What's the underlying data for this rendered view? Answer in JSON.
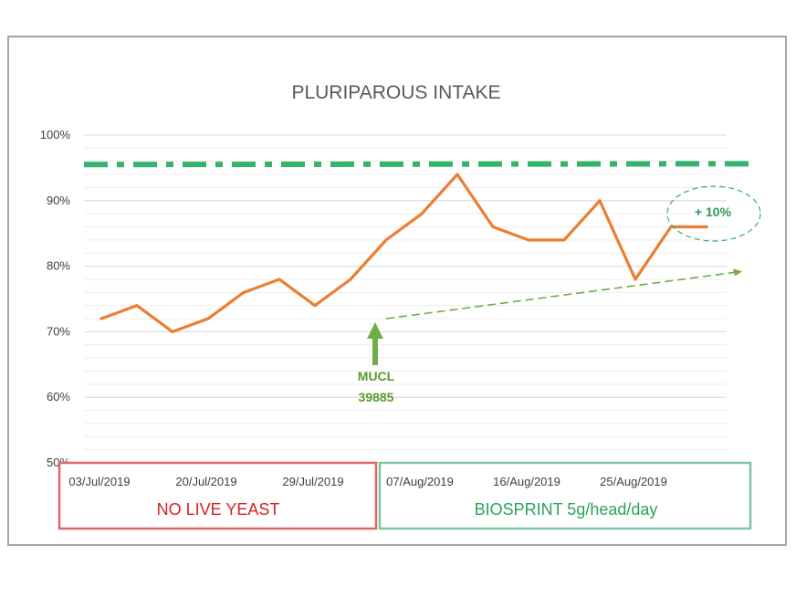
{
  "chart_data": {
    "type": "line",
    "title": "PLURIPAROUS INTAKE",
    "xlabel": "",
    "ylabel": "",
    "ylim": [
      50,
      100
    ],
    "ytick_labels": [
      "50%",
      "60%",
      "70%",
      "80%",
      "90%",
      "100%"
    ],
    "yticks": [
      50,
      60,
      70,
      80,
      90,
      100
    ],
    "x_tick_labels": [
      "03/Jul/2019",
      "20/Jul/2019",
      "29/Jul/2019",
      "07/Aug/2019",
      "16/Aug/2019",
      "25/Aug/2019"
    ],
    "x_tick_index": [
      0,
      3,
      6,
      9,
      12,
      15
    ],
    "series": [
      {
        "color": "#ed7d31",
        "values": [
          72,
          74,
          70,
          72,
          76,
          78,
          74,
          78,
          84,
          88,
          94,
          86,
          84,
          84,
          90,
          78,
          86,
          86
        ]
      }
    ],
    "target_line": {
      "value": 95.5,
      "color": "#33b36b"
    },
    "trend_line": {
      "from_index": 8,
      "from_value": 72,
      "to_index": 18,
      "to_value": 79.2,
      "color": "#70ad47"
    },
    "grid": true,
    "annotations": {
      "increase_label": "+ 10%",
      "arrow_label_line1": "MUCL",
      "arrow_label_line2": "39885",
      "arrow_color": "#70ad47"
    },
    "bands": [
      {
        "label": "NO LIVE YEAST",
        "color": "#e06666",
        "text_color": "#d32222"
      },
      {
        "label": "BIOSPRINT 5g/head/day",
        "color": "#7fc6a0",
        "text_color": "#2aa45a"
      }
    ]
  }
}
